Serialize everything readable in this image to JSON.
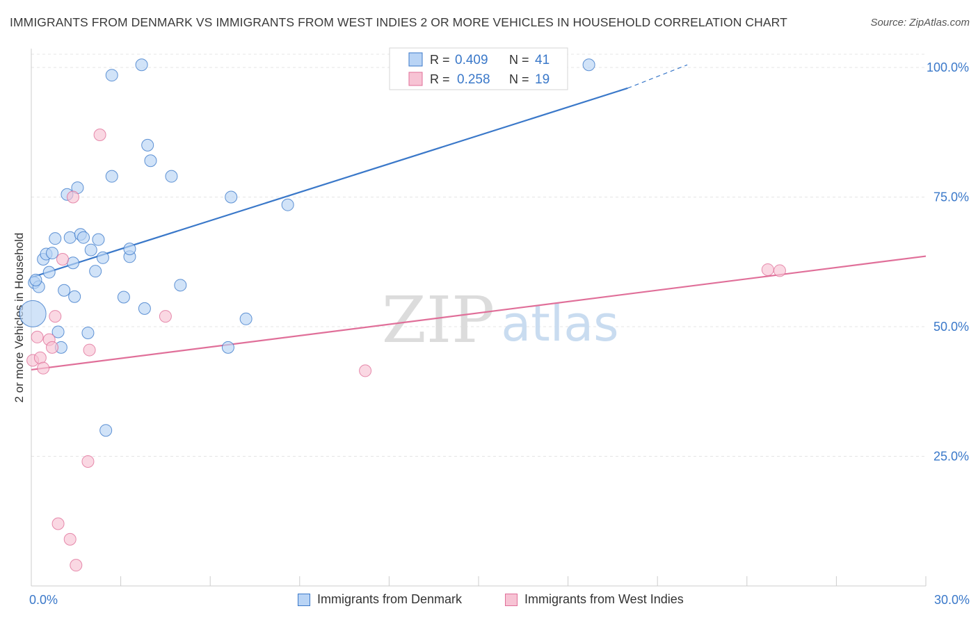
{
  "title": "IMMIGRANTS FROM DENMARK VS IMMIGRANTS FROM WEST INDIES 2 OR MORE VEHICLES IN HOUSEHOLD CORRELATION CHART",
  "source": "Source: ZipAtlas.com",
  "watermark": {
    "zip": "ZIP",
    "atlas": "atlas"
  },
  "colors": {
    "blue": "#3a78c9",
    "blue_fill": "#b9d4f5",
    "pink": "#e06f99",
    "pink_fill": "#f7c3d4",
    "tick_label": "#3a78c9"
  },
  "chart_data": {
    "type": "scatter",
    "xlabel": "",
    "ylabel": "2 or more Vehicles in Household",
    "xlim": [
      0,
      30
    ],
    "ylim": [
      0,
      102
    ],
    "x_tick_labels": [
      {
        "value": 0,
        "label": "0.0%"
      },
      {
        "value": 30,
        "label": "30.0%"
      }
    ],
    "y_tick_labels": [
      {
        "value": 25,
        "label": "25.0%"
      },
      {
        "value": 50,
        "label": "50.0%"
      },
      {
        "value": 75,
        "label": "75.0%"
      },
      {
        "value": 100,
        "label": "100.0%"
      }
    ],
    "grid": true,
    "legend_placement": "top-center",
    "stats": [
      {
        "r_label": "R = ",
        "r": "0.409",
        "n_label": "N = ",
        "n": "41"
      },
      {
        "r_label": "R = ",
        "r": "0.258",
        "n_label": "N = ",
        "n": "19"
      }
    ],
    "series": [
      {
        "name": "Immigrants from Denmark",
        "color": "#3a78c9",
        "points": [
          [
            0.05,
            52.5
          ],
          [
            0.1,
            58.5
          ],
          [
            0.25,
            57.7
          ],
          [
            0.4,
            63.0
          ],
          [
            0.5,
            64.0
          ],
          [
            0.6,
            60.5
          ],
          [
            0.7,
            64.2
          ],
          [
            0.8,
            67.0
          ],
          [
            0.9,
            49.0
          ],
          [
            1.0,
            46.0
          ],
          [
            1.1,
            57.0
          ],
          [
            1.2,
            75.5
          ],
          [
            1.3,
            67.2
          ],
          [
            1.4,
            62.3
          ],
          [
            1.45,
            55.8
          ],
          [
            1.55,
            76.8
          ],
          [
            1.65,
            67.8
          ],
          [
            1.75,
            67.2
          ],
          [
            1.9,
            48.8
          ],
          [
            2.0,
            64.8
          ],
          [
            2.15,
            60.7
          ],
          [
            2.25,
            66.8
          ],
          [
            2.4,
            63.3
          ],
          [
            2.5,
            30.0
          ],
          [
            2.7,
            98.5
          ],
          [
            2.7,
            79.0
          ],
          [
            3.1,
            55.7
          ],
          [
            3.3,
            63.5
          ],
          [
            3.3,
            65.0
          ],
          [
            3.7,
            100.5
          ],
          [
            3.8,
            53.5
          ],
          [
            3.9,
            85.0
          ],
          [
            4.0,
            82.0
          ],
          [
            4.7,
            79.0
          ],
          [
            5.0,
            58.0
          ],
          [
            6.6,
            46.0
          ],
          [
            6.7,
            75.0
          ],
          [
            7.2,
            51.5
          ],
          [
            8.6,
            73.5
          ],
          [
            18.7,
            100.5
          ],
          [
            0.15,
            59.0
          ]
        ],
        "trend": {
          "x1": 0.0,
          "y1": 59.5,
          "x2": 20.0,
          "y2": 96.0,
          "dash_to_x": 22.0,
          "dash_to_y": 100.5
        }
      },
      {
        "name": "Immigrants from West Indies",
        "color": "#e06f99",
        "points": [
          [
            0.05,
            43.5
          ],
          [
            0.2,
            48.0
          ],
          [
            0.3,
            44.0
          ],
          [
            0.4,
            42.0
          ],
          [
            0.6,
            47.5
          ],
          [
            0.7,
            46.0
          ],
          [
            0.8,
            52.0
          ],
          [
            0.9,
            12.0
          ],
          [
            1.05,
            63.0
          ],
          [
            1.3,
            9.0
          ],
          [
            1.4,
            75.0
          ],
          [
            1.5,
            4.0
          ],
          [
            1.9,
            24.0
          ],
          [
            1.95,
            45.5
          ],
          [
            2.3,
            87.0
          ],
          [
            4.5,
            52.0
          ],
          [
            11.2,
            41.5
          ],
          [
            24.7,
            61.0
          ],
          [
            25.1,
            60.8
          ]
        ],
        "trend": {
          "x1": 0.0,
          "y1": 41.7,
          "x2": 30.0,
          "y2": 63.6
        }
      }
    ]
  }
}
